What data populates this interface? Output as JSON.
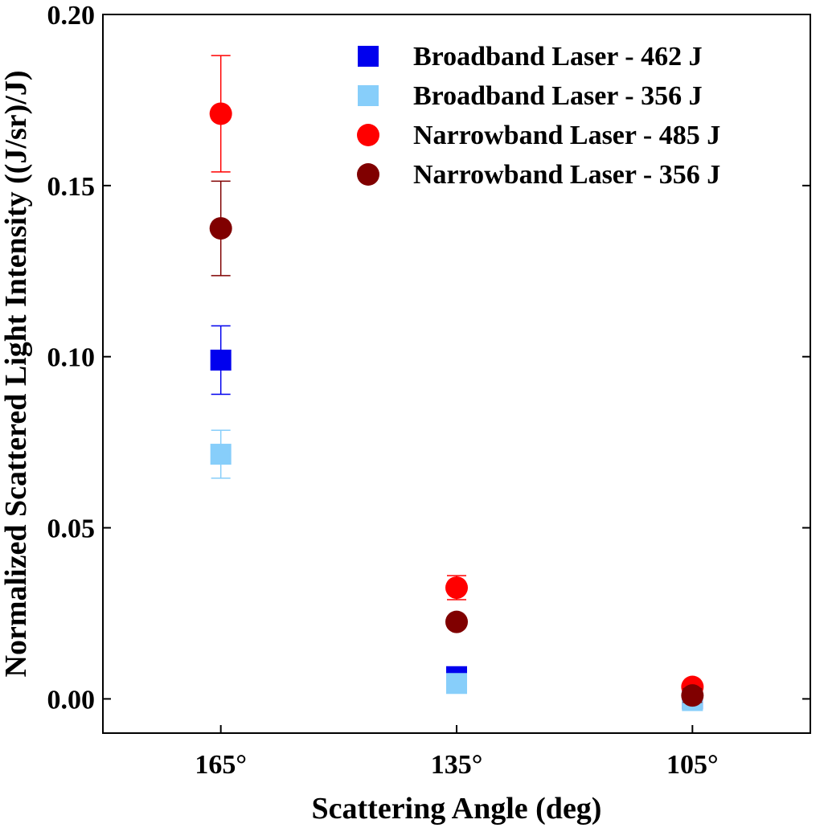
{
  "chart_data": {
    "type": "scatter",
    "x_label": "Scattering Angle (deg)",
    "y_label": "Normalized Scattered Light Intensity ((J/sr)/J)",
    "categories": [
      "165°",
      "135°",
      "105°"
    ],
    "ylim": [
      -0.01,
      0.2
    ],
    "yticks": [
      {
        "value": 0,
        "label": "0.00"
      },
      0.05,
      {
        "value": 0.1,
        "label": "0.10"
      },
      0.15,
      {
        "value": 0.2,
        "label": "0.20"
      }
    ],
    "legend": "upper-right",
    "series": [
      {
        "name": "Broadband Laser - 462 J",
        "color": "#0000ee",
        "marker": "square",
        "values": [
          0.099,
          0.0065,
          0.0
        ],
        "errors": [
          0.01,
          0.001,
          0.0005
        ]
      },
      {
        "name": "Broadband Laser - 356 J",
        "color": "#87cefa",
        "marker": "square",
        "values": [
          0.0715,
          0.0045,
          -0.0005
        ],
        "errors": [
          0.007,
          0.0008,
          0.0005
        ]
      },
      {
        "name": "Narrowband Laser - 485 J",
        "color": "#ff0000",
        "marker": "circle",
        "values": [
          0.171,
          0.0325,
          0.0035
        ],
        "errors": [
          0.017,
          0.0035,
          0.001
        ]
      },
      {
        "name": "Narrowband Laser - 356 J",
        "color": "#800000",
        "marker": "circle",
        "values": [
          0.1375,
          0.0225,
          0.001
        ],
        "errors": [
          0.0138,
          0.0015,
          0.002
        ]
      }
    ]
  }
}
